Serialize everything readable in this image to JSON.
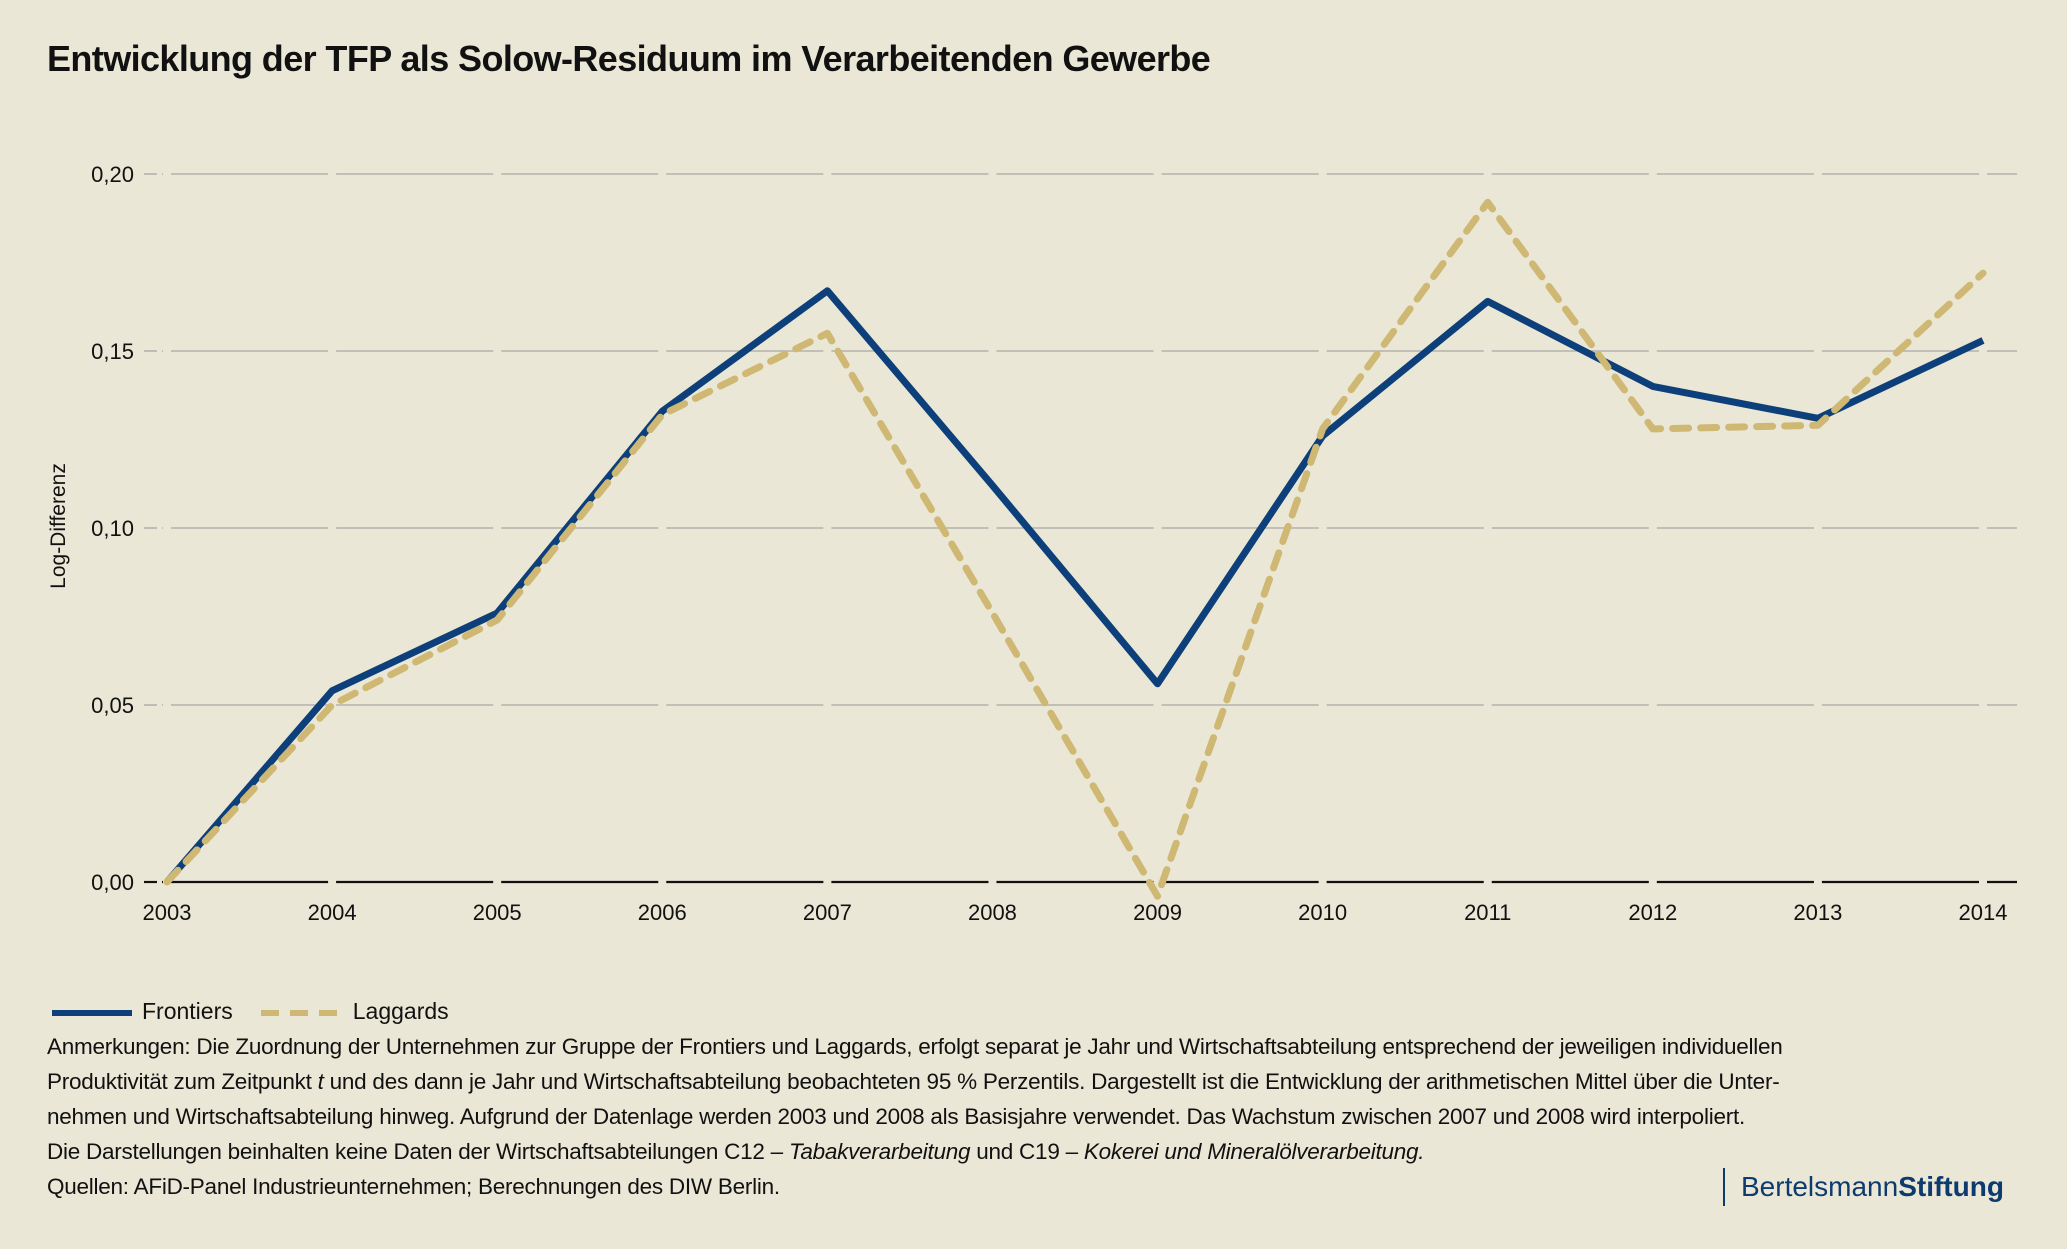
{
  "title": "Entwicklung der TFP als Solow-Residuum im Verarbeitenden Gewerbe",
  "colors": {
    "background": "#ebe7d6",
    "frontiers": "#0d3f7a",
    "laggards": "#cfb873",
    "grid": "#b3b2ab",
    "axis": "#111111",
    "logo": "#0d3b6e"
  },
  "chart_data": {
    "type": "line",
    "title": "Entwicklung der TFP als Solow-Residuum im Verarbeitenden Gewerbe",
    "xlabel": "",
    "ylabel": "Log-Differenz",
    "x": [
      "2003",
      "2004",
      "2005",
      "2006",
      "2007",
      "2008",
      "2009",
      "2010",
      "2011",
      "2012",
      "2013",
      "2014"
    ],
    "ylim": [
      0,
      0.2
    ],
    "yticks": [
      0,
      0.05,
      0.1,
      0.15,
      0.2
    ],
    "ytick_labels": [
      "0,00",
      "0,05",
      "0,10",
      "0,15",
      "0,20"
    ],
    "grid": true,
    "legend_position": "bottom-left",
    "series": [
      {
        "name": "Frontiers",
        "style": "solid",
        "values": [
          0.0,
          0.054,
          0.076,
          0.133,
          0.167,
          0.112,
          0.056,
          0.126,
          0.164,
          0.14,
          0.131,
          0.153
        ]
      },
      {
        "name": "Laggards",
        "style": "dashed",
        "values": [
          0.0,
          0.05,
          0.074,
          0.132,
          0.155,
          0.076,
          -0.004,
          0.128,
          0.192,
          0.128,
          0.129,
          0.172
        ]
      }
    ]
  },
  "legend": {
    "items": [
      {
        "label": "Frontiers",
        "style": "solid"
      },
      {
        "label": "Laggards",
        "style": "dashed"
      }
    ]
  },
  "notes": {
    "line1": "Anmerkungen: Die Zuordnung der Unternehmen zur Gruppe der Frontiers und Laggards, erfolgt separat je Jahr und Wirtschaftsabteilung entsprechend der jeweiligen individuellen",
    "line2_a": "Produktivität zum Zeitpunkt ",
    "line2_italic": "t",
    "line2_b": " und des dann je Jahr und Wirtschaftsabteilung beobachteten 95 % Perzentils. Dargestellt ist die Entwicklung der arithmetischen Mittel über die Unter-",
    "line3": "nehmen und Wirtschaftsabteilung hinweg. Aufgrund der Datenlage werden 2003 und 2008 als Basisjahre verwendet. Das Wachstum zwischen 2007 und 2008 wird interpoliert.",
    "line4_a": "Die Darstellungen beinhalten keine Daten der Wirtschaftsabteilungen C12 – ",
    "line4_italic1": "Tabakverarbeitung",
    "line4_b": " und C19 – ",
    "line4_italic2": "Kokerei und Mineralölverarbeitung.",
    "sources": "Quellen: AFiD-Panel Industrieunternehmen; Berechnungen des DIW Berlin."
  },
  "logo": {
    "part1": "Bertelsmann",
    "part2": "Stiftung"
  }
}
